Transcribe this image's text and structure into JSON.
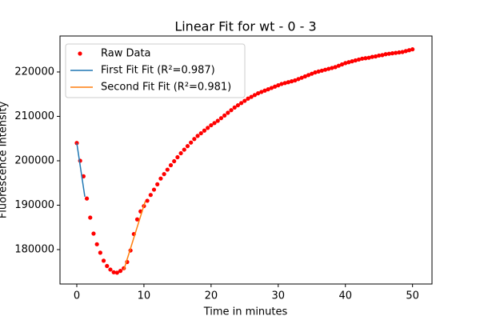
{
  "chart_data": {
    "type": "scatter",
    "title": "Linear Fit for wt - 0 - 3",
    "xlabel": "Time in minutes",
    "ylabel": "Fluorescence Intensity",
    "xlim": [
      -2.5,
      52.9
    ],
    "ylim": [
      172250,
      228100
    ],
    "xticks": [
      0,
      10,
      20,
      30,
      40,
      50
    ],
    "yticks": [
      180000,
      190000,
      200000,
      210000,
      220000
    ],
    "legend": "upper left",
    "series": [
      {
        "name": "Raw Data",
        "color": "#ff0000",
        "style": "markers",
        "x": [
          0,
          0.5,
          1,
          1.5,
          2,
          2.5,
          3,
          3.5,
          4,
          4.5,
          5,
          5.5,
          6,
          6.5,
          7,
          7.5,
          8,
          8.5,
          9,
          9.5,
          10,
          10.5,
          11,
          11.5,
          12,
          12.5,
          13,
          13.5,
          14,
          14.5,
          15,
          15.5,
          16,
          16.5,
          17,
          17.5,
          18,
          18.5,
          19,
          19.5,
          20,
          20.5,
          21,
          21.5,
          22,
          22.5,
          23,
          23.5,
          24,
          24.5,
          25,
          25.5,
          26,
          26.5,
          27,
          27.5,
          28,
          28.5,
          29,
          29.5,
          30,
          30.5,
          31,
          31.5,
          32,
          32.5,
          33,
          33.5,
          34,
          34.5,
          35,
          35.5,
          36,
          36.5,
          37,
          37.5,
          38,
          38.5,
          39,
          39.5,
          40,
          40.5,
          41,
          41.5,
          42,
          42.5,
          43,
          43.5,
          44,
          44.5,
          45,
          45.5,
          46,
          46.5,
          47,
          47.5,
          48,
          48.5,
          49,
          49.5,
          50
        ],
        "values": [
          204000,
          200000,
          196500,
          191500,
          187200,
          183600,
          181200,
          179300,
          177500,
          176300,
          175500,
          174900,
          174800,
          175200,
          175800,
          177200,
          179800,
          183500,
          186800,
          188600,
          189800,
          191000,
          192300,
          193500,
          194700,
          196000,
          197000,
          198000,
          199000,
          199900,
          200800,
          201700,
          202500,
          203300,
          204100,
          204900,
          205600,
          206200,
          206800,
          207400,
          208000,
          208500,
          209000,
          209600,
          210200,
          210800,
          211400,
          212000,
          212500,
          213000,
          213500,
          214000,
          214400,
          214800,
          215200,
          215500,
          215800,
          216100,
          216400,
          216700,
          217000,
          217300,
          217500,
          217700,
          217900,
          218100,
          218400,
          218700,
          219000,
          219300,
          219600,
          219900,
          220100,
          220300,
          220500,
          220700,
          220900,
          221100,
          221400,
          221700,
          222000,
          222200,
          222400,
          222600,
          222800,
          223000,
          223100,
          223200,
          223400,
          223500,
          223700,
          223800,
          224000,
          224100,
          224200,
          224300,
          224400,
          224500,
          224700,
          224900,
          225100
        ]
      },
      {
        "name": "First Fit Fit (R²=0.987)",
        "color": "#1f77b4",
        "style": "line",
        "x": [
          0,
          1.2
        ],
        "values": [
          204000,
          191900
        ]
      },
      {
        "name": "Second Fit Fit (R²=0.981)",
        "color": "#ff7f0e",
        "style": "line",
        "x": [
          7.0,
          10.2
        ],
        "values": [
          175400,
          190900
        ]
      }
    ]
  }
}
